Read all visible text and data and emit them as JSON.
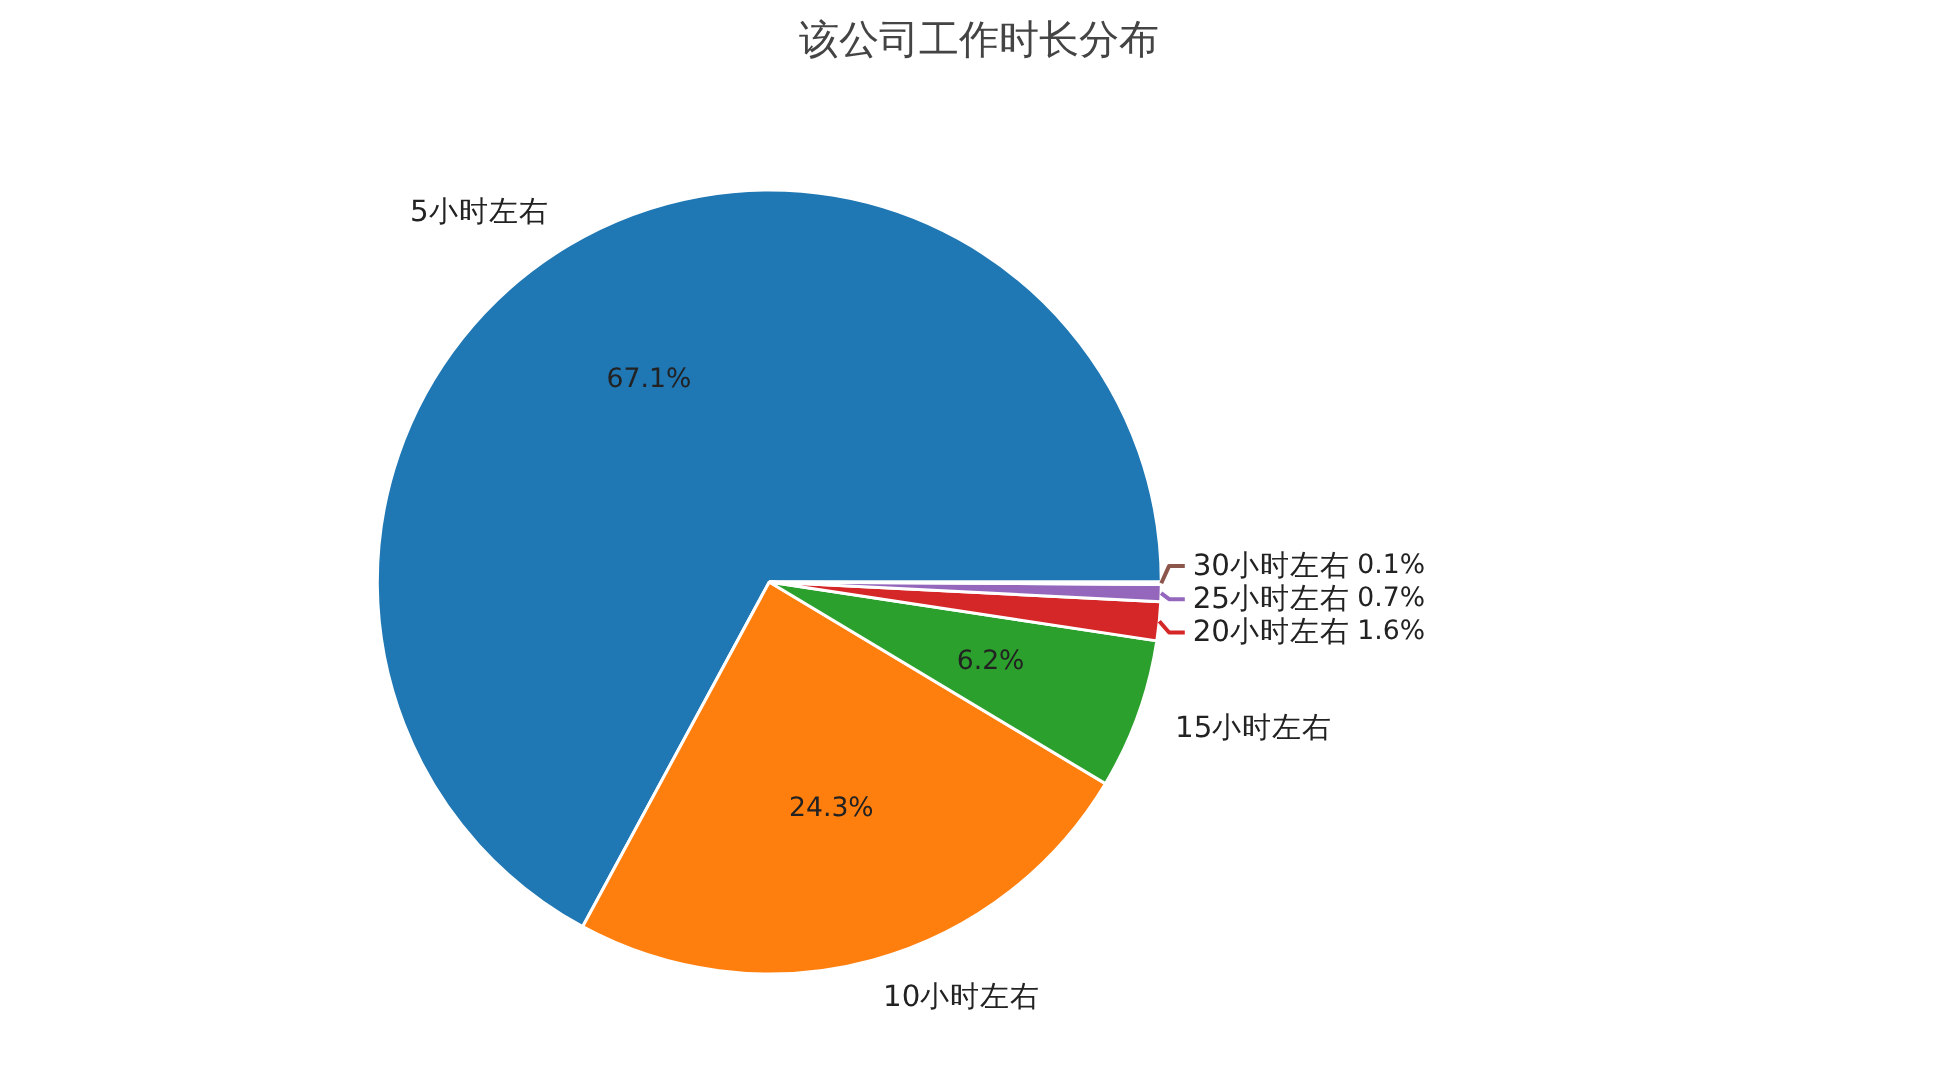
{
  "chart_data": {
    "type": "pie",
    "title": "该公司工作时长分布",
    "categories": [
      "5小时左右",
      "10小时左右",
      "15小时左右",
      "20小时左右",
      "25小时左右",
      "30小时左右"
    ],
    "values": [
      67.1,
      24.3,
      6.2,
      1.6,
      0.7,
      0.1
    ],
    "value_labels": [
      "67.1%",
      "24.3%",
      "6.2%",
      "1.6%",
      "0.7%",
      "0.1%"
    ],
    "colors": [
      "#1f77b4",
      "#ff7f0e",
      "#2ca02c",
      "#d62728",
      "#9467bd",
      "#8c564b"
    ]
  }
}
